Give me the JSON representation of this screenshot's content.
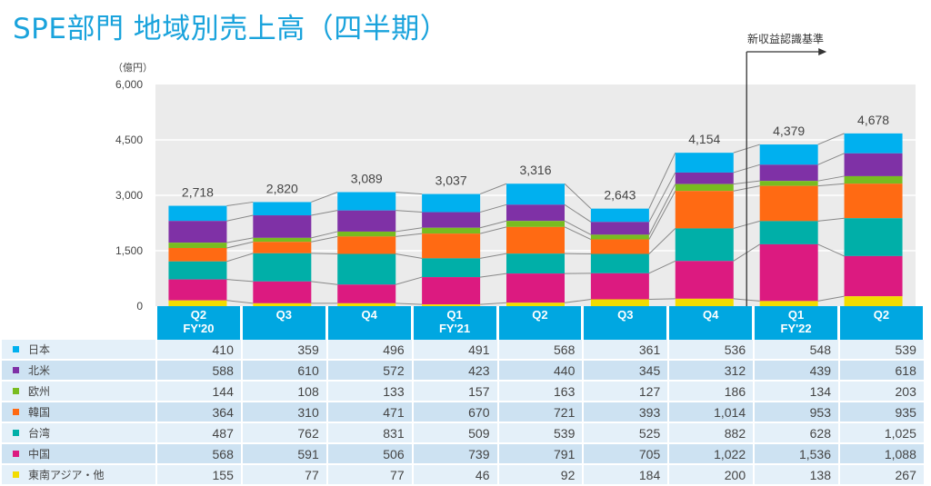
{
  "title": "SPE部門 地域別売上高（四半期）",
  "unit_label": "（億円）",
  "revenue_standard_label": "新収益認識基準",
  "chart_data": {
    "type": "bar",
    "stacked": true,
    "title": "SPE部門 地域別売上高（四半期）",
    "ylabel": "（億円）",
    "ylim": [
      0,
      6000
    ],
    "yticks": [
      "6,000",
      "4,500",
      "3,000",
      "1,500",
      "0"
    ],
    "ytick_values": [
      6000,
      4500,
      3000,
      1500,
      0
    ],
    "grid": true,
    "categories": [
      {
        "q": "Q2",
        "fy": "FY'20"
      },
      {
        "q": "Q3",
        "fy": ""
      },
      {
        "q": "Q4",
        "fy": ""
      },
      {
        "q": "Q1",
        "fy": "FY'21"
      },
      {
        "q": "Q2",
        "fy": ""
      },
      {
        "q": "Q3",
        "fy": ""
      },
      {
        "q": "Q4",
        "fy": ""
      },
      {
        "q": "Q1",
        "fy": "FY'22"
      },
      {
        "q": "Q2",
        "fy": ""
      }
    ],
    "totals": [
      "2,718",
      "2,820",
      "3,089",
      "3,037",
      "3,316",
      "2,643",
      "4,154",
      "4,379",
      "4,678"
    ],
    "total_values": [
      2718,
      2820,
      3089,
      3037,
      3316,
      2643,
      4154,
      4379,
      4678
    ],
    "series": [
      {
        "name": "日本",
        "color": "#00b0ef",
        "values": [
          410,
          359,
          496,
          491,
          568,
          361,
          536,
          548,
          539
        ],
        "labels": [
          "410",
          "359",
          "496",
          "491",
          "568",
          "361",
          "536",
          "548",
          "539"
        ]
      },
      {
        "name": "北米",
        "color": "#7f31a6",
        "values": [
          588,
          610,
          572,
          423,
          440,
          345,
          312,
          439,
          618
        ],
        "labels": [
          "588",
          "610",
          "572",
          "423",
          "440",
          "345",
          "312",
          "439",
          "618"
        ]
      },
      {
        "name": "欧州",
        "color": "#78bc20",
        "values": [
          144,
          108,
          133,
          157,
          163,
          127,
          186,
          134,
          203
        ],
        "labels": [
          "144",
          "108",
          "133",
          "157",
          "163",
          "127",
          "186",
          "134",
          "203"
        ]
      },
      {
        "name": "韓国",
        "color": "#ff6a13",
        "values": [
          364,
          310,
          471,
          670,
          721,
          393,
          1014,
          953,
          935
        ],
        "labels": [
          "364",
          "310",
          "471",
          "670",
          "721",
          "393",
          "1,014",
          "953",
          "935"
        ]
      },
      {
        "name": "台湾",
        "color": "#00afa8",
        "values": [
          487,
          762,
          831,
          509,
          539,
          525,
          882,
          628,
          1025
        ],
        "labels": [
          "487",
          "762",
          "831",
          "509",
          "539",
          "525",
          "882",
          "628",
          "1,025"
        ]
      },
      {
        "name": "中国",
        "color": "#dc1a80",
        "values": [
          568,
          591,
          506,
          739,
          791,
          705,
          1022,
          1536,
          1088
        ],
        "labels": [
          "568",
          "591",
          "506",
          "739",
          "791",
          "705",
          "1,022",
          "1,536",
          "1,088"
        ]
      },
      {
        "name": "東南アジア・他",
        "color": "#f2dc00",
        "values": [
          155,
          77,
          77,
          46,
          92,
          184,
          200,
          138,
          267
        ],
        "labels": [
          "155",
          "77",
          "77",
          "46",
          "92",
          "184",
          "200",
          "138",
          "267"
        ]
      }
    ],
    "annotation": {
      "text": "新収益認識基準",
      "starts_at_category_index": 7
    }
  },
  "colors": {
    "header_bg": "#00a7e1",
    "plot_bg": "#ebebeb",
    "row_odd": "#e4f0f9",
    "row_even": "#cde2f2"
  }
}
